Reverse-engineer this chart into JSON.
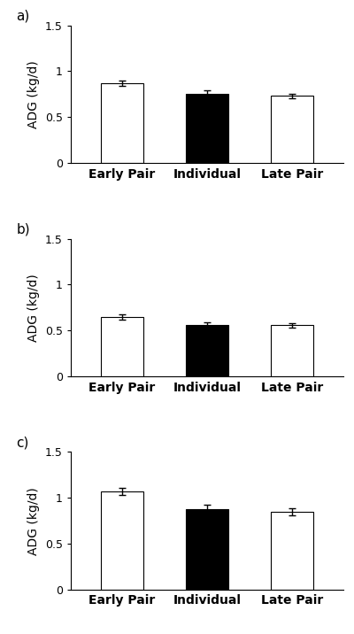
{
  "panels": [
    {
      "label": "a)",
      "values": [
        0.87,
        0.75,
        0.73
      ],
      "errors": [
        0.03,
        0.04,
        0.025
      ],
      "colors": [
        "white",
        "black",
        "white"
      ]
    },
    {
      "label": "b)",
      "values": [
        0.65,
        0.56,
        0.555
      ],
      "errors": [
        0.03,
        0.025,
        0.02
      ],
      "colors": [
        "white",
        "black",
        "white"
      ]
    },
    {
      "label": "c)",
      "values": [
        1.07,
        0.875,
        0.845
      ],
      "errors": [
        0.04,
        0.05,
        0.04
      ],
      "colors": [
        "white",
        "black",
        "white"
      ]
    }
  ],
  "categories": [
    "Early Pair",
    "Individual",
    "Late Pair"
  ],
  "ylabel": "ADG (kg/d)",
  "ylim": [
    0,
    1.5
  ],
  "yticks": [
    0,
    0.5,
    1.0,
    1.5
  ],
  "bar_width": 0.5,
  "edge_color": "black",
  "background_color": "#ffffff",
  "xlabel_fontsize": 10,
  "ylabel_fontsize": 10,
  "tick_fontsize": 9,
  "panel_label_fontsize": 11
}
